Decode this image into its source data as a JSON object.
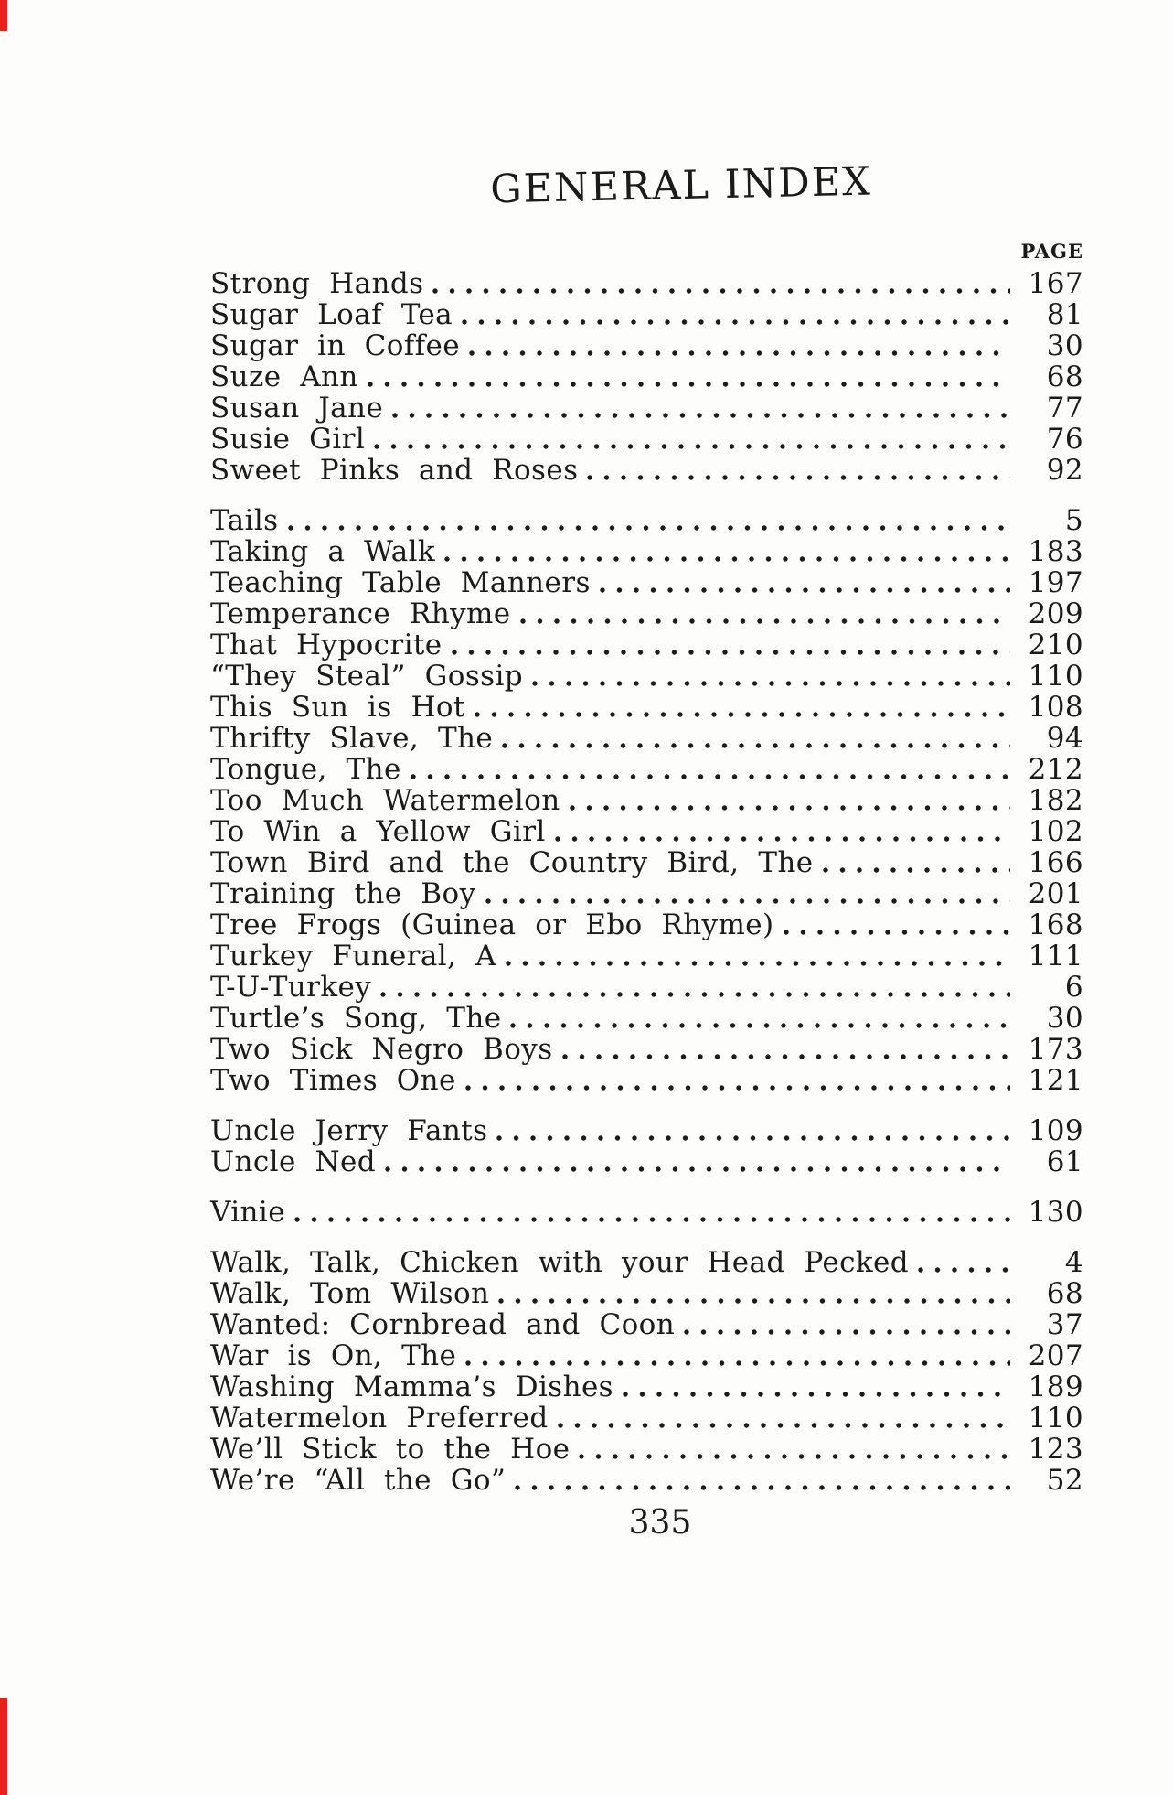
{
  "page": {
    "title": "GENERAL INDEX",
    "column_header": "PAGE",
    "folio": "335"
  },
  "index": {
    "groups": [
      {
        "entries": [
          {
            "title": "Strong Hands",
            "page": "167"
          },
          {
            "title": "Sugar Loaf Tea",
            "page": "81"
          },
          {
            "title": "Sugar in Coffee",
            "page": "30"
          },
          {
            "title": "Suze Ann",
            "page": "68"
          },
          {
            "title": "Susan Jane",
            "page": "77"
          },
          {
            "title": "Susie Girl",
            "page": "76"
          },
          {
            "title": "Sweet Pinks and Roses",
            "page": "92"
          }
        ]
      },
      {
        "entries": [
          {
            "title": "Tails",
            "page": "5"
          },
          {
            "title": "Taking a Walk",
            "page": "183"
          },
          {
            "title": "Teaching Table Manners",
            "page": "197"
          },
          {
            "title": "Temperance Rhyme",
            "page": "209"
          },
          {
            "title": "That Hypocrite",
            "page": "210"
          },
          {
            "title": "“They Steal” Gossip",
            "page": "110"
          },
          {
            "title": "This Sun is Hot",
            "page": "108"
          },
          {
            "title": "Thrifty Slave, The",
            "page": "94"
          },
          {
            "title": "Tongue, The",
            "page": "212"
          },
          {
            "title": "Too Much Watermelon",
            "page": "182"
          },
          {
            "title": "To Win a Yellow Girl",
            "page": "102"
          },
          {
            "title": "Town Bird and the Country Bird, The",
            "page": "166"
          },
          {
            "title": "Training the Boy",
            "page": "201"
          },
          {
            "title": "Tree Frogs (Guinea or Ebo Rhyme)",
            "page": "168"
          },
          {
            "title": "Turkey Funeral, A",
            "page": "111"
          },
          {
            "title": "T-U-Turkey",
            "page": "6"
          },
          {
            "title": "Turtle’s Song, The",
            "page": "30"
          },
          {
            "title": "Two Sick Negro Boys",
            "page": "173"
          },
          {
            "title": "Two Times One",
            "page": "121"
          }
        ]
      },
      {
        "entries": [
          {
            "title": "Uncle Jerry Fants",
            "page": "109"
          },
          {
            "title": "Uncle Ned",
            "page": "61"
          }
        ]
      },
      {
        "entries": [
          {
            "title": "Vinie",
            "page": "130"
          }
        ]
      },
      {
        "entries": [
          {
            "title": "Walk, Talk, Chicken with your Head Pecked",
            "page": "4"
          },
          {
            "title": "Walk, Tom Wilson",
            "page": "68"
          },
          {
            "title": "Wanted: Cornbread and Coon",
            "page": "37"
          },
          {
            "title": "War is On, The",
            "page": "207"
          },
          {
            "title": "Washing Mamma’s Dishes",
            "page": "189"
          },
          {
            "title": "Watermelon Preferred",
            "page": "110"
          },
          {
            "title": "We’ll Stick to the Hoe",
            "page": "123"
          },
          {
            "title": "We’re “All the Go”",
            "page": "52"
          }
        ]
      }
    ]
  },
  "colors": {
    "ink": "#1b1b1b",
    "paper": "#fdfdfc",
    "edge_mark": "#e8211a"
  }
}
